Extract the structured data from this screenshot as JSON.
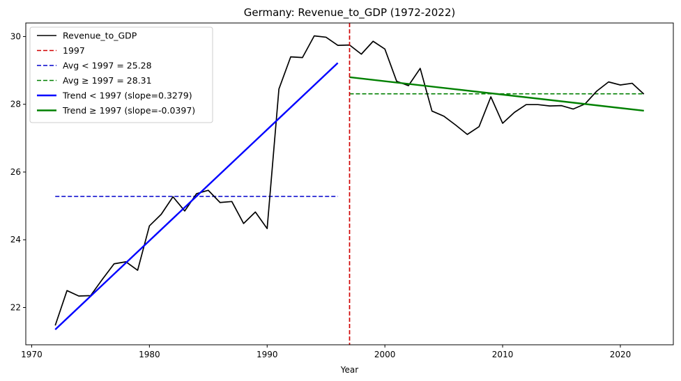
{
  "chart_data": {
    "type": "line",
    "title": "Germany: Revenue_to_GDP (1972-2022)",
    "xlabel": "Year",
    "ylabel": "",
    "xlim": [
      1969.5,
      2024.5
    ],
    "ylim": [
      20.9,
      30.4
    ],
    "xticks": [
      1970,
      1980,
      1990,
      2000,
      2010,
      2020
    ],
    "yticks": [
      22,
      24,
      26,
      28,
      30
    ],
    "series": [
      {
        "name": "Revenue_to_GDP",
        "color": "#000000",
        "style": "solid",
        "x": [
          1972,
          1973,
          1974,
          1975,
          1976,
          1977,
          1978,
          1979,
          1980,
          1981,
          1982,
          1983,
          1984,
          1985,
          1986,
          1987,
          1988,
          1989,
          1990,
          1991,
          1992,
          1993,
          1994,
          1995,
          1996,
          1997,
          1998,
          1999,
          2000,
          2001,
          2002,
          2003,
          2004,
          2005,
          2006,
          2007,
          2008,
          2009,
          2010,
          2011,
          2012,
          2013,
          2014,
          2015,
          2016,
          2017,
          2018,
          2019,
          2020,
          2021,
          2022
        ],
        "y": [
          21.47,
          22.5,
          22.34,
          22.35,
          22.83,
          23.29,
          23.35,
          23.1,
          24.41,
          24.75,
          25.27,
          24.85,
          25.36,
          25.46,
          25.1,
          25.13,
          24.48,
          24.82,
          24.33,
          28.45,
          29.4,
          29.38,
          30.02,
          29.98,
          29.74,
          29.75,
          29.48,
          29.86,
          29.63,
          28.68,
          28.55,
          29.06,
          27.8,
          27.65,
          27.39,
          27.11,
          27.34,
          28.22,
          27.44,
          27.76,
          27.99,
          27.99,
          27.95,
          27.96,
          27.86,
          28.01,
          28.39,
          28.66,
          28.57,
          28.62,
          28.3
        ]
      }
    ],
    "threshold": {
      "name": "1997",
      "x": 1997,
      "color": "#d00000"
    },
    "averages": [
      {
        "name": "Avg < 1997 = 25.28",
        "value": 25.28,
        "x_start": 1972,
        "x_end": 1996,
        "color": "#0000cc"
      },
      {
        "name": "Avg ≥ 1997 = 28.31",
        "value": 28.31,
        "x_start": 1997,
        "x_end": 2022,
        "color": "#008000"
      }
    ],
    "trends": [
      {
        "name": "Trend < 1997 (slope=0.3279)",
        "x": [
          1972,
          1996
        ],
        "y": [
          21.35,
          29.22
        ],
        "color": "#0000ff"
      },
      {
        "name": "Trend ≥ 1997 (slope=-0.0397)",
        "x": [
          1997,
          2022
        ],
        "y": [
          28.8,
          27.81
        ],
        "color": "#008000"
      }
    ],
    "legend": {
      "position": "top-left",
      "entries": [
        {
          "label": "Revenue_to_GDP",
          "color": "#000000",
          "style": "solid",
          "width": 1.6
        },
        {
          "label": "1997",
          "color": "#d00000",
          "style": "dashed",
          "width": 1.6
        },
        {
          "label": "Avg < 1997 = 25.28",
          "color": "#0000cc",
          "style": "dashed",
          "width": 1.6
        },
        {
          "label": "Avg ≥ 1997 = 28.31",
          "color": "#008000",
          "style": "dashed",
          "width": 1.6
        },
        {
          "label": "Trend < 1997 (slope=0.3279)",
          "color": "#0000ff",
          "style": "solid",
          "width": 2.4
        },
        {
          "label": "Trend ≥ 1997 (slope=-0.0397)",
          "color": "#008000",
          "style": "solid",
          "width": 2.4
        }
      ]
    }
  }
}
